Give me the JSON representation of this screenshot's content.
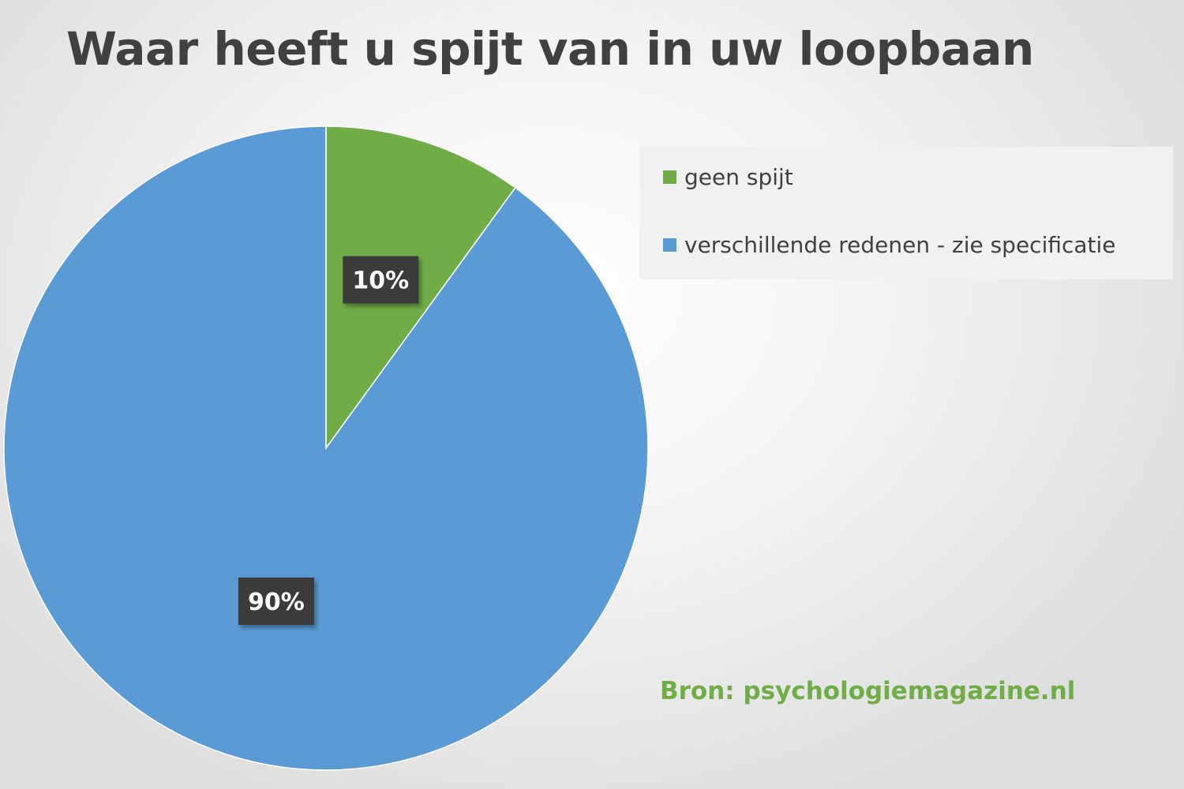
{
  "title": "Waar heeft u spijt van in uw loopbaan",
  "source": "Bron: psychologiemagazine.nl",
  "colors": {
    "green": "#70ad47",
    "blue": "#5b9bd5",
    "label_bg": "#3a3a3a",
    "label_text": "#ffffff",
    "source_text": "#70ad47"
  },
  "chart_data": {
    "type": "pie",
    "title": "Waar heeft u spijt van in uw loopbaan",
    "slices": [
      {
        "label": "geen spijt",
        "value": 10,
        "value_label": "10%",
        "color": "#70ad47"
      },
      {
        "label": "verschillende redenen - zie specificatie",
        "value": 90,
        "value_label": "90%",
        "color": "#5b9bd5"
      }
    ],
    "legend_position": "top-right"
  }
}
